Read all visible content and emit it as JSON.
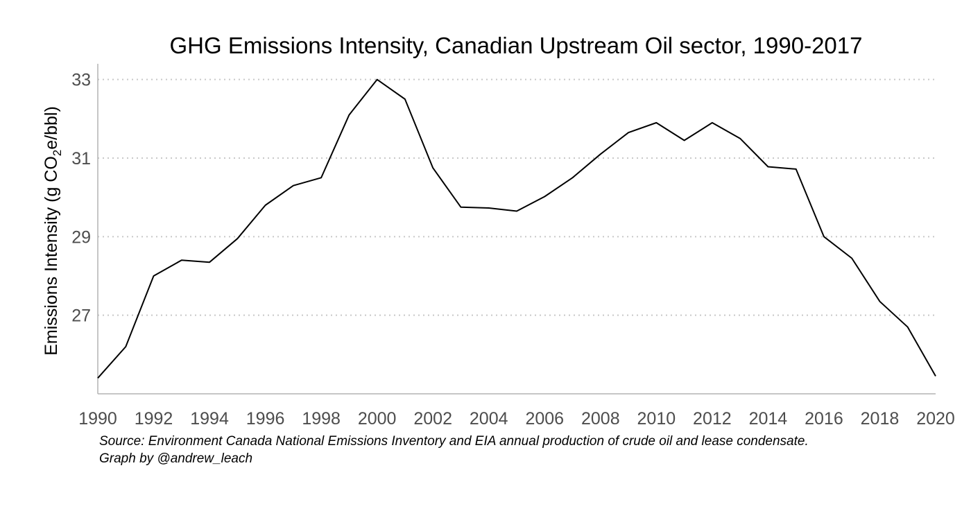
{
  "chart_data": {
    "type": "line",
    "title": "GHG Emissions Intensity, Canadian Upstream Oil sector, 1990-2017",
    "ylabel": {
      "prefix": "Emissions Intensity  (g CO",
      "subscript": "2",
      "suffix": "e/bbl)"
    },
    "xlabel": "",
    "xlim": [
      1990,
      2020
    ],
    "ylim": [
      25.0,
      33.4
    ],
    "x_ticks": [
      1990,
      1992,
      1994,
      1996,
      1998,
      2000,
      2002,
      2004,
      2006,
      2008,
      2010,
      2012,
      2014,
      2016,
      2018,
      2020
    ],
    "x_tick_labels": [
      "1990",
      "1992",
      "1994",
      "1996",
      "1998",
      "2000",
      "2002",
      "2004",
      "2006",
      "2008",
      "2010",
      "2012",
      "2014",
      "2016",
      "2018",
      "2020"
    ],
    "y_ticks": [
      27,
      29,
      31,
      33
    ],
    "y_tick_labels": [
      "27",
      "29",
      "31",
      "33"
    ],
    "grid": "horizontal dotted",
    "series": [
      {
        "name": "",
        "color": "#000000",
        "x": [
          1990,
          1991,
          1992,
          1993,
          1994,
          1995,
          1996,
          1997,
          1998,
          1999,
          2000,
          2001,
          2002,
          2003,
          2004,
          2005,
          2006,
          2007,
          2008,
          2009,
          2010,
          2011,
          2012,
          2013,
          2014,
          2015,
          2016,
          2017,
          2018,
          2019,
          2020
        ],
        "y": [
          25.4,
          26.2,
          28.0,
          28.4,
          28.35,
          28.95,
          29.8,
          30.3,
          30.5,
          32.1,
          33.0,
          32.5,
          30.75,
          29.75,
          29.73,
          29.65,
          30.02,
          30.5,
          31.1,
          31.65,
          31.9,
          31.45,
          31.9,
          31.5,
          30.78,
          30.72,
          29.0,
          28.45,
          27.35,
          26.7,
          25.45
        ]
      }
    ]
  },
  "source": {
    "line1": "Source: Environment Canada National Emissions Inventory and EIA annual production of crude oil and lease condensate.",
    "line2": "Graph by @andrew_leach"
  },
  "colors": {
    "line": "#000000",
    "grid": "#c8c8c8",
    "axis": "#b3b3b3",
    "tick_text": "#4d4d4d"
  }
}
